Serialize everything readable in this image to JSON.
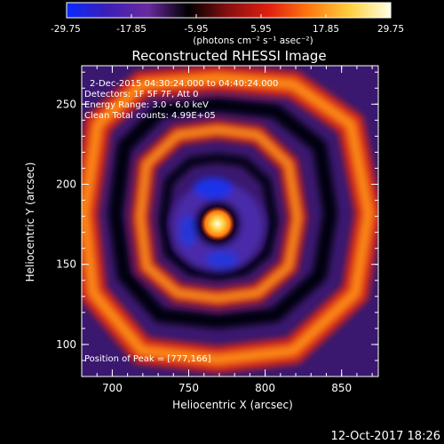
{
  "colorbar": {
    "ticks": [
      "-29.75",
      "-17.85",
      "-5.95",
      "5.95",
      "17.85",
      "29.75"
    ],
    "units": "(photons cm⁻² s⁻¹ asec⁻²)",
    "range": [
      -29.75,
      29.75
    ],
    "colors": [
      "#0a2aff",
      "#3b1fb5",
      "#6a2aa0",
      "#000000",
      "#8a0f10",
      "#e02010",
      "#ff7a10",
      "#ffd040",
      "#ffffe8"
    ]
  },
  "chart_data": {
    "type": "heatmap",
    "title": "Reconstructed RHESSI Image",
    "xlabel": "Heliocentric X (arcsec)",
    "ylabel": "Heliocentric Y (arcsec)",
    "xlim": [
      680,
      874
    ],
    "ylim": [
      80,
      274
    ],
    "xticks": [
      "700",
      "750",
      "800",
      "850"
    ],
    "yticks": [
      "100",
      "150",
      "200",
      "250"
    ],
    "peak": [
      777,
      166
    ],
    "annotations": {
      "time_range": "2-Dec-2015 04:30:24.000 to 04:40:24.000",
      "detectors": "Detectors: 1F 5F 7F, Att 0",
      "energy_range": "Energy Range: 3.0 - 6.0 keV",
      "method": "Clean     Total counts: 4.99E+05",
      "peak_label": "Position of Peak = [777,166]"
    }
  },
  "footer": {
    "timestamp": "12-Oct-2017 18:26"
  }
}
